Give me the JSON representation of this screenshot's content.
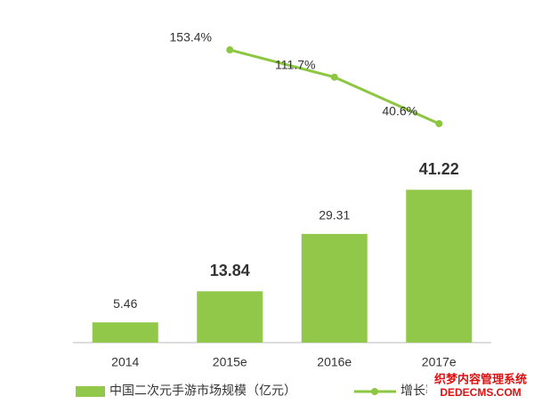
{
  "chart_data": {
    "type": "bar_line",
    "categories": [
      "2014",
      "2015e",
      "2016e",
      "2017e"
    ],
    "series": [
      {
        "name": "中国二次元手游市场规模（亿元）",
        "type": "bar",
        "color": "#92c84a",
        "values": [
          5.46,
          13.84,
          29.31,
          41.22
        ],
        "value_label_bold": [
          false,
          true,
          false,
          true
        ]
      },
      {
        "name": "增长率（%）",
        "type": "line",
        "axis": "y2",
        "color": "#8dc640",
        "values": [
          null,
          153.4,
          111.7,
          40.6
        ],
        "value_labels": [
          null,
          "153.4%",
          "111.7%",
          "40.6%"
        ]
      }
    ],
    "ylim": [
      0,
      90
    ],
    "y2lim": [
      -294,
      216
    ],
    "grid": false,
    "watermark": [
      "织梦内容管理系统",
      "DEDECMS.COM"
    ]
  }
}
